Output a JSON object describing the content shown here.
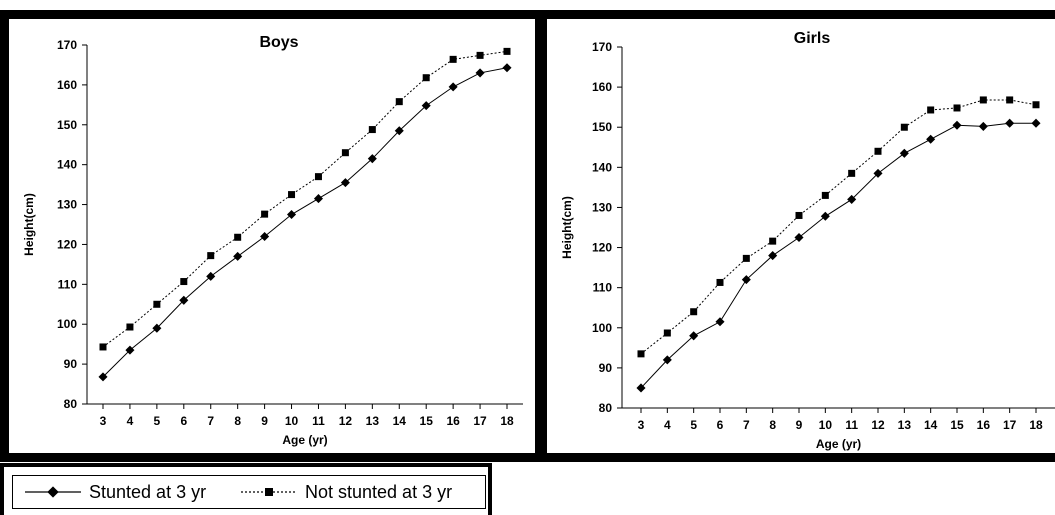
{
  "chart_data": [
    {
      "type": "line",
      "title": "Boys",
      "xlabel": "Age (yr)",
      "ylabel": "Height(cm)",
      "categories": [
        "3",
        "4",
        "5",
        "6",
        "7",
        "8",
        "9",
        "10",
        "11",
        "12",
        "13",
        "14",
        "15",
        "16",
        "17",
        "18"
      ],
      "ylim": [
        80,
        170
      ],
      "yticks": [
        "80",
        "90",
        "100",
        "110",
        "120",
        "130",
        "140",
        "150",
        "160",
        "170"
      ],
      "grid": false,
      "series": [
        {
          "name": "Stunted at 3 yr",
          "style": "solid",
          "marker": "diamond",
          "values": [
            86.8,
            93.5,
            99.0,
            106.0,
            112.0,
            117.0,
            122.0,
            127.5,
            131.5,
            135.5,
            141.5,
            148.5,
            154.8,
            159.5,
            163.0,
            164.3
          ]
        },
        {
          "name": "Not stunted at 3 yr",
          "style": "dotted",
          "marker": "square",
          "values": [
            94.3,
            99.3,
            105.0,
            110.7,
            117.2,
            121.8,
            127.6,
            132.5,
            137.0,
            143.0,
            148.8,
            155.8,
            161.8,
            166.4,
            167.4,
            168.4
          ]
        }
      ]
    },
    {
      "type": "line",
      "title": "Girls",
      "xlabel": "Age (yr)",
      "ylabel": "Height(cm)",
      "categories": [
        "3",
        "4",
        "5",
        "6",
        "7",
        "8",
        "9",
        "10",
        "11",
        "12",
        "13",
        "14",
        "15",
        "16",
        "17",
        "18"
      ],
      "ylim": [
        80,
        170
      ],
      "yticks": [
        "80",
        "90",
        "100",
        "110",
        "120",
        "130",
        "140",
        "150",
        "160",
        "170"
      ],
      "grid": false,
      "series": [
        {
          "name": "Stunted at 3 yr",
          "style": "solid",
          "marker": "diamond",
          "values": [
            85.0,
            92.0,
            98.0,
            101.5,
            112.0,
            118.0,
            122.5,
            127.8,
            132.0,
            138.5,
            143.5,
            147.0,
            150.5,
            150.2,
            151.0,
            151.0
          ]
        },
        {
          "name": "Not stunted at 3 yr",
          "style": "dotted",
          "marker": "square",
          "values": [
            93.5,
            98.7,
            104.0,
            111.3,
            117.3,
            121.6,
            128.0,
            133.0,
            138.5,
            144.0,
            150.0,
            154.3,
            154.8,
            156.8,
            156.8,
            155.6
          ]
        }
      ]
    }
  ],
  "legend": {
    "items": [
      {
        "label": "Stunted at 3 yr",
        "style": "solid",
        "marker": "diamond"
      },
      {
        "label": "Not stunted at 3 yr",
        "style": "dotted",
        "marker": "square"
      }
    ]
  }
}
